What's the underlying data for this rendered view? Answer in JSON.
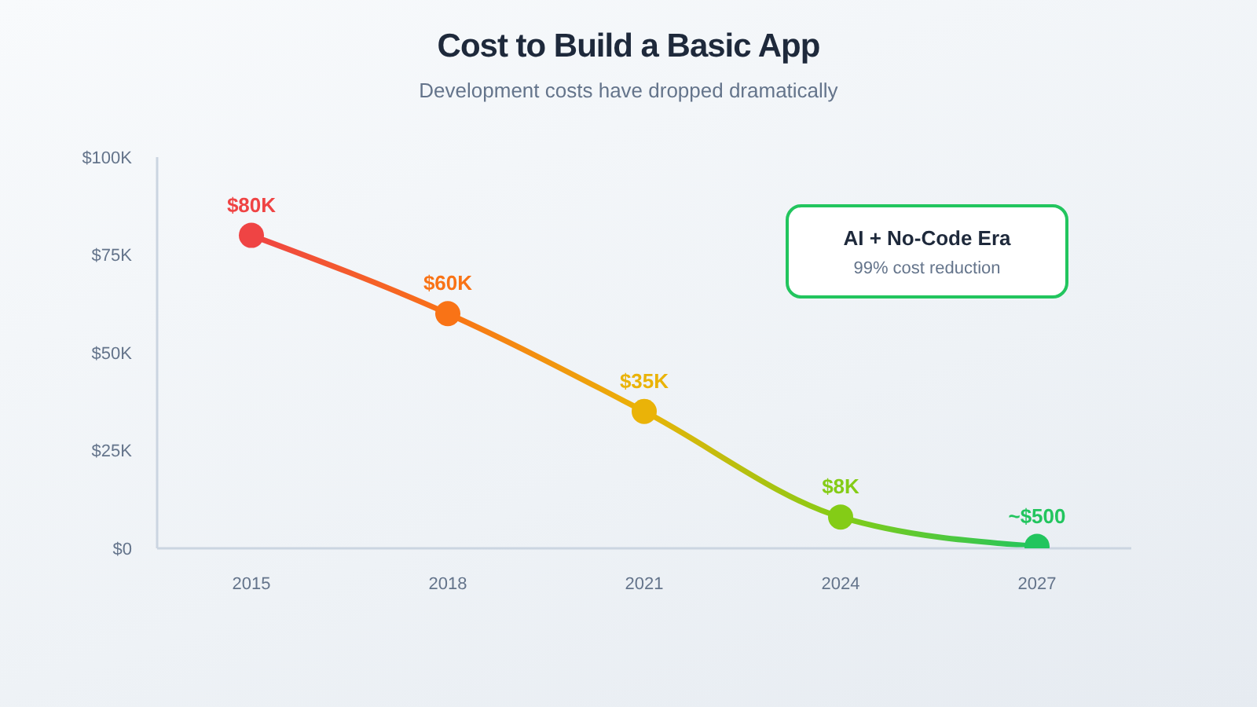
{
  "chart_data": {
    "type": "line",
    "title": "Cost to Build a Basic App",
    "subtitle": "Development costs have dropped dramatically",
    "categories": [
      "2015",
      "2018",
      "2021",
      "2024",
      "2027"
    ],
    "series": [
      {
        "colors": [
          "#ef4444",
          "#f97316",
          "#eab308",
          "#84cc16",
          "#22c55e"
        ],
        "values": [
          80000,
          60000,
          35000,
          8000,
          500
        ],
        "value_labels": [
          "$80K",
          "$60K",
          "$35K",
          "$8K",
          "~$500"
        ]
      }
    ],
    "ylim": [
      0,
      100000
    ],
    "yticks": [
      {
        "value": 0,
        "label": "$0"
      },
      {
        "value": 25000,
        "label": "$25K"
      },
      {
        "value": 50000,
        "label": "$50K"
      },
      {
        "value": 75000,
        "label": "$75K"
      },
      {
        "value": 100000,
        "label": "$100K"
      }
    ],
    "annotations": [
      "AI + No-Code Era",
      "99% cost reduction"
    ],
    "marker": "circle",
    "line_style": "solid"
  }
}
